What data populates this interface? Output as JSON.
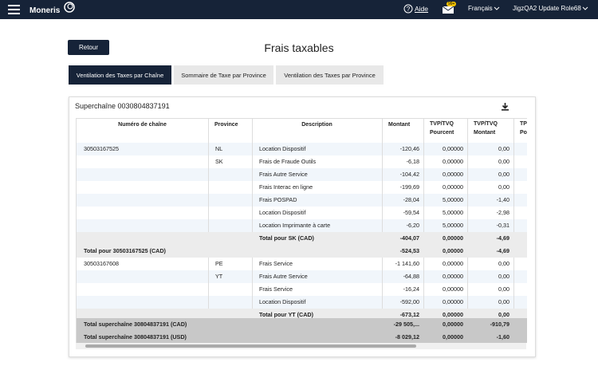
{
  "nav": {
    "brand": "Moneris",
    "help": "Aide",
    "badge": "99+",
    "language": "Français",
    "user": "JigzQA2 Update Role68"
  },
  "page": {
    "title": "Frais taxables",
    "back": "Retour"
  },
  "tabs": [
    {
      "label": "Ventilation des Taxes par Chaîne",
      "active": true
    },
    {
      "label": "Sommaire de Taxe par Province",
      "active": false
    },
    {
      "label": "Ventilation des Taxes par Province",
      "active": false
    }
  ],
  "card": {
    "title": "Superchaîne 0030804837191"
  },
  "table": {
    "columns": [
      [
        "Numéro de chaîne"
      ],
      [
        "Province"
      ],
      [
        "Description"
      ],
      [
        "Montant"
      ],
      [
        "TVP/TVQ",
        "Pourcent"
      ],
      [
        "TVP/TVQ",
        "Montant"
      ],
      [
        "TP",
        "Po"
      ]
    ],
    "rows": [
      {
        "style": "detail",
        "cells": [
          "30503167525",
          "NL",
          "Location Dispositif",
          "-120,46",
          "0,00000",
          "0,00",
          null
        ]
      },
      {
        "style": "detail",
        "cells": [
          null,
          "SK",
          "Frais de Fraude Outils",
          "-6,18",
          "0,00000",
          "0,00",
          null
        ]
      },
      {
        "style": "detail",
        "cells": [
          null,
          null,
          "Frais Autre Service",
          "-104,42",
          "0,00000",
          "0,00",
          null
        ]
      },
      {
        "style": "detail",
        "cells": [
          null,
          null,
          "Frais Interac en ligne",
          "-199,69",
          "0,00000",
          "0,00",
          null
        ]
      },
      {
        "style": "detail",
        "cells": [
          null,
          null,
          "Frais POSPAD",
          "-28,04",
          "5,00000",
          "-1,40",
          null
        ]
      },
      {
        "style": "detail",
        "cells": [
          null,
          null,
          "Location Dispositif",
          "-59,54",
          "5,00000",
          "-2,98",
          null
        ]
      },
      {
        "style": "detail",
        "cells": [
          null,
          null,
          "Location Imprimante à carte",
          "-6,20",
          "5,00000",
          "-0,31",
          null
        ]
      },
      {
        "style": "subtotal",
        "cells": [
          null,
          null,
          "Total pour SK (CAD)",
          "-404,07",
          "0,00000",
          "-4,69",
          null
        ]
      },
      {
        "style": "subtotal",
        "cells": [
          "Total pour 30503167525 (CAD)",
          null,
          null,
          "-524,53",
          "0,00000",
          "-4,69",
          null
        ]
      },
      {
        "style": "detail",
        "cells": [
          "30503167608",
          "PE",
          "Frais Service",
          "-1 141,60",
          "0,00000",
          "0,00",
          null
        ]
      },
      {
        "style": "detail",
        "cells": [
          null,
          "YT",
          "Frais Autre Service",
          "-64,88",
          "0,00000",
          "0,00",
          null
        ]
      },
      {
        "style": "detail",
        "cells": [
          null,
          null,
          "Frais Service",
          "-16,24",
          "0,00000",
          "0,00",
          null
        ]
      },
      {
        "style": "detail",
        "cells": [
          null,
          null,
          "Location Dispositif",
          "-592,00",
          "0,00000",
          "0,00",
          null
        ]
      },
      {
        "style": "subtotal",
        "cells": [
          null,
          null,
          "Total pour YT (CAD)",
          "-673,12",
          "0,00000",
          "0,00",
          null
        ]
      }
    ],
    "footer": [
      {
        "style": "grand",
        "cells": [
          "Total superchaîne 30804837191 (CAD)",
          null,
          null,
          "-29 505,...",
          "0,00000",
          "-910,79",
          null
        ]
      },
      {
        "style": "grand",
        "cells": [
          "Total superchaîne 30804837191 (USD)",
          null,
          null,
          "-8 029,12",
          "0,00000",
          "-1,60",
          null
        ]
      }
    ]
  }
}
